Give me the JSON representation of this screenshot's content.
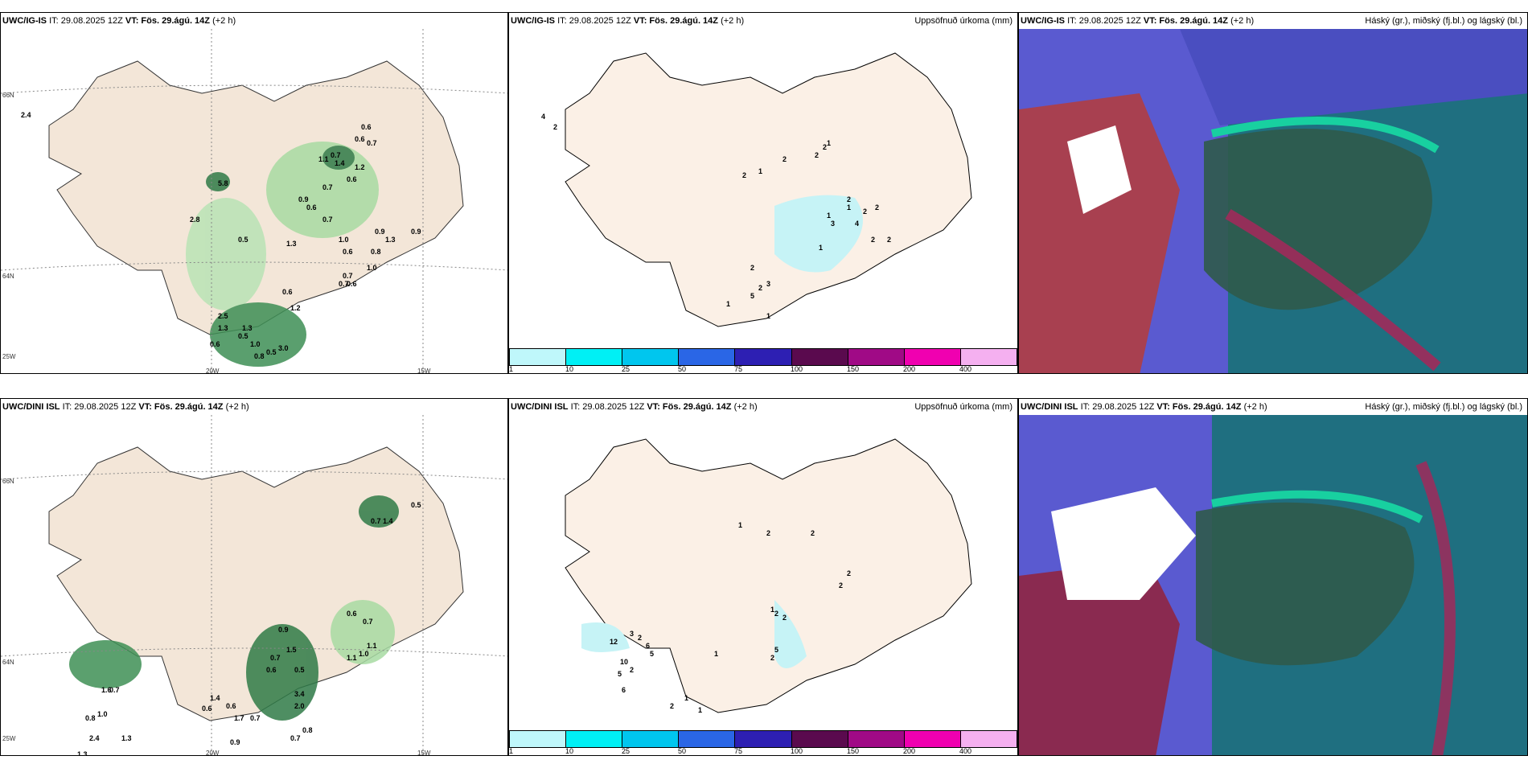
{
  "panels": {
    "tl": {
      "model": "UWC/IG-IS",
      "it": "IT: 29.08.2025 12Z",
      "vt_label": "VT:",
      "vt": "Fös. 29.ágú. 14Z",
      "lead": "(+2 h)",
      "right": ""
    },
    "tm": {
      "model": "UWC/IG-IS",
      "it": "IT: 29.08.2025 12Z",
      "vt_label": "VT:",
      "vt": "Fös. 29.ágú. 14Z",
      "lead": "(+2 h)",
      "right": "Uppsöfnuð úrkoma (mm)"
    },
    "tr": {
      "model": "UWC/IG-IS",
      "it": "IT: 29.08.2025 12Z",
      "vt_label": "VT:",
      "vt": "Fös. 29.ágú. 14Z",
      "lead": "(+2 h)",
      "right": "Háský (gr.), miðský (fj.bl.) og lágský (bl.)"
    },
    "bl": {
      "model": "UWC/DINI ISL",
      "it": "IT: 29.08.2025 12Z",
      "vt_label": "VT:",
      "vt": "Fös. 29.ágú. 14Z",
      "lead": "(+2 h)",
      "right": ""
    },
    "bm": {
      "model": "UWC/DINI ISL",
      "it": "IT: 29.08.2025 12Z",
      "vt_label": "VT:",
      "vt": "Fös. 29.ágú. 14Z",
      "lead": "(+2 h)",
      "right": "Uppsöfnuð úrkoma (mm)"
    },
    "br": {
      "model": "UWC/DINI ISL",
      "it": "IT: 29.08.2025 12Z",
      "vt_label": "VT:",
      "vt": "Fös. 29.ágú. 14Z",
      "lead": "(+2 h)",
      "right": "Háský (gr.), miðský (fj.bl.) og lágský (bl.)"
    }
  },
  "axes": {
    "lat_66": "66N",
    "lat_64": "64N",
    "lon_20": "20W",
    "lon_15": "15W",
    "lon_25": "25W"
  },
  "colorbar": {
    "labels": [
      "1",
      "10",
      "25",
      "50",
      "75",
      "100",
      "150",
      "200",
      "400"
    ],
    "colors": [
      "#bff7fb",
      "#00f0f5",
      "#00c6ee",
      "#2a66e6",
      "#2d1fb3",
      "#5a0a4e",
      "#a00a86",
      "#f000b0",
      "#f5b0f0"
    ]
  },
  "precip_top": [
    "0.6",
    "0.6",
    "0.7",
    "0.7",
    "1.1",
    "1.4",
    "1.2",
    "0.6",
    "0.7",
    "0.9",
    "0.6",
    "0.7",
    "0.9",
    "1.3",
    "1.0",
    "0.6",
    "0.8",
    "1.0",
    "0.7",
    "0.6",
    "0.7",
    "0.6",
    "1.2",
    "2.5",
    "1.3",
    "0.5",
    "1.3",
    "1.0",
    "0.6",
    "0.5",
    "3.0",
    "0.8",
    "0.9",
    "2.4",
    "5.8",
    "2.8",
    "0.5",
    "1.3"
  ],
  "precip_bottom": [
    "0.5",
    "0.7",
    "1.4",
    "0.6",
    "0.7",
    "1.1",
    "1.1",
    "1.0",
    "0.9",
    "1.5",
    "0.7",
    "0.6",
    "0.5",
    "3.4",
    "2.0",
    "0.8",
    "0.7",
    "1.6",
    "0.7",
    "0.8",
    "1.4",
    "0.6",
    "0.6",
    "1.7",
    "0.7",
    "0.9",
    "1.3",
    "1.0",
    "2.4",
    "1.3"
  ],
  "accum_top": [
    "4",
    "2",
    "2",
    "1",
    "2",
    "2",
    "1",
    "2",
    "2",
    "1",
    "2",
    "2",
    "1",
    "3",
    "4",
    "2",
    "2",
    "1",
    "2",
    "3",
    "2",
    "5",
    "1",
    "1"
  ],
  "accum_bottom": [
    "1",
    "2",
    "2",
    "2",
    "2",
    "1",
    "2",
    "2",
    "5",
    "2",
    "1",
    "12",
    "3",
    "2",
    "6",
    "5",
    "10",
    "2",
    "5",
    "6",
    "1",
    "1",
    "2"
  ]
}
